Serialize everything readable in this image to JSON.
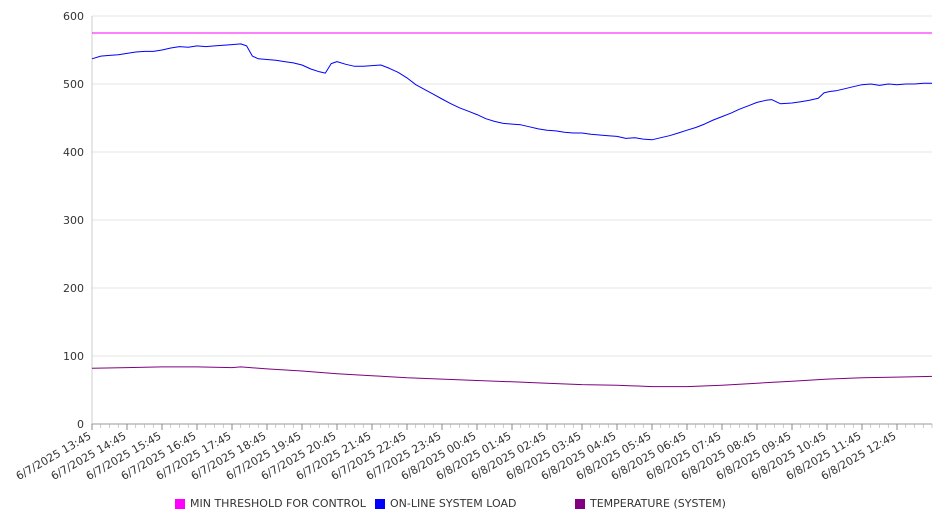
{
  "chart_data": {
    "type": "line",
    "title": "",
    "xlabel": "",
    "ylabel": "",
    "ylim": [
      0,
      600
    ],
    "yticks": [
      0,
      100,
      200,
      300,
      400,
      500,
      600
    ],
    "grid": true,
    "legend_placement": "bottom",
    "x_tick_labels": [
      "6/7/2025 13:45",
      "6/7/2025 14:45",
      "6/7/2025 15:45",
      "6/7/2025 16:45",
      "6/7/2025 17:45",
      "6/7/2025 18:45",
      "6/7/2025 19:45",
      "6/7/2025 20:45",
      "6/7/2025 21:45",
      "6/7/2025 22:45",
      "6/7/2025 23:45",
      "6/8/2025 00:45",
      "6/8/2025 01:45",
      "6/8/2025 02:45",
      "6/8/2025 03:45",
      "6/8/2025 04:45",
      "6/8/2025 05:45",
      "6/8/2025 06:45",
      "6/8/2025 07:45",
      "6/8/2025 08:45",
      "6/8/2025 09:45",
      "6/8/2025 10:45",
      "6/8/2025 11:45",
      "6/8/2025 12:45"
    ],
    "series": [
      {
        "name": "MIN THRESHOLD FOR CONTROL",
        "color": "#ff00ff",
        "points": [
          [
            "6/7/2025 13:45",
            575
          ],
          [
            "6/8/2025 13:45",
            575
          ]
        ]
      },
      {
        "name": "ON-LINE SYSTEM LOAD",
        "color": "#0000ff",
        "points": [
          [
            "6/7/2025 13:45",
            537
          ],
          [
            "6/7/2025 14:00",
            541
          ],
          [
            "6/7/2025 14:15",
            542
          ],
          [
            "6/7/2025 14:30",
            543
          ],
          [
            "6/7/2025 14:45",
            545
          ],
          [
            "6/7/2025 15:00",
            547
          ],
          [
            "6/7/2025 15:15",
            548
          ],
          [
            "6/7/2025 15:30",
            548
          ],
          [
            "6/7/2025 15:45",
            550
          ],
          [
            "6/7/2025 16:00",
            553
          ],
          [
            "6/7/2025 16:15",
            555
          ],
          [
            "6/7/2025 16:30",
            554
          ],
          [
            "6/7/2025 16:45",
            556
          ],
          [
            "6/7/2025 17:00",
            555
          ],
          [
            "6/7/2025 17:15",
            556
          ],
          [
            "6/7/2025 17:30",
            557
          ],
          [
            "6/7/2025 17:45",
            558
          ],
          [
            "6/7/2025 18:00",
            559
          ],
          [
            "6/7/2025 18:10",
            556
          ],
          [
            "6/7/2025 18:20",
            541
          ],
          [
            "6/7/2025 18:30",
            537
          ],
          [
            "6/7/2025 18:45",
            536
          ],
          [
            "6/7/2025 19:00",
            535
          ],
          [
            "6/7/2025 19:15",
            533
          ],
          [
            "6/7/2025 19:30",
            531
          ],
          [
            "6/7/2025 19:45",
            528
          ],
          [
            "6/7/2025 20:00",
            522
          ],
          [
            "6/7/2025 20:15",
            518
          ],
          [
            "6/7/2025 20:25",
            516
          ],
          [
            "6/7/2025 20:35",
            530
          ],
          [
            "6/7/2025 20:45",
            533
          ],
          [
            "6/7/2025 21:00",
            529
          ],
          [
            "6/7/2025 21:15",
            526
          ],
          [
            "6/7/2025 21:30",
            526
          ],
          [
            "6/7/2025 21:45",
            527
          ],
          [
            "6/7/2025 22:00",
            528
          ],
          [
            "6/7/2025 22:15",
            523
          ],
          [
            "6/7/2025 22:30",
            517
          ],
          [
            "6/7/2025 22:45",
            509
          ],
          [
            "6/7/2025 23:00",
            499
          ],
          [
            "6/7/2025 23:15",
            492
          ],
          [
            "6/7/2025 23:30",
            485
          ],
          [
            "6/7/2025 23:45",
            478
          ],
          [
            "6/8/2025 00:00",
            471
          ],
          [
            "6/8/2025 00:15",
            465
          ],
          [
            "6/8/2025 00:30",
            460
          ],
          [
            "6/8/2025 00:45",
            455
          ],
          [
            "6/8/2025 01:00",
            449
          ],
          [
            "6/8/2025 01:15",
            445
          ],
          [
            "6/8/2025 01:30",
            442
          ],
          [
            "6/8/2025 01:45",
            441
          ],
          [
            "6/8/2025 02:00",
            440
          ],
          [
            "6/8/2025 02:15",
            437
          ],
          [
            "6/8/2025 02:30",
            434
          ],
          [
            "6/8/2025 02:45",
            432
          ],
          [
            "6/8/2025 03:00",
            431
          ],
          [
            "6/8/2025 03:15",
            429
          ],
          [
            "6/8/2025 03:30",
            428
          ],
          [
            "6/8/2025 03:45",
            428
          ],
          [
            "6/8/2025 04:00",
            426
          ],
          [
            "6/8/2025 04:15",
            425
          ],
          [
            "6/8/2025 04:30",
            424
          ],
          [
            "6/8/2025 04:45",
            423
          ],
          [
            "6/8/2025 05:00",
            420
          ],
          [
            "6/8/2025 05:15",
            421
          ],
          [
            "6/8/2025 05:30",
            419
          ],
          [
            "6/8/2025 05:45",
            418
          ],
          [
            "6/8/2025 06:00",
            421
          ],
          [
            "6/8/2025 06:15",
            424
          ],
          [
            "6/8/2025 06:30",
            428
          ],
          [
            "6/8/2025 06:45",
            432
          ],
          [
            "6/8/2025 07:00",
            436
          ],
          [
            "6/8/2025 07:15",
            441
          ],
          [
            "6/8/2025 07:30",
            447
          ],
          [
            "6/8/2025 07:45",
            452
          ],
          [
            "6/8/2025 08:00",
            457
          ],
          [
            "6/8/2025 08:15",
            463
          ],
          [
            "6/8/2025 08:30",
            468
          ],
          [
            "6/8/2025 08:45",
            473
          ],
          [
            "6/8/2025 09:00",
            476
          ],
          [
            "6/8/2025 09:10",
            477
          ],
          [
            "6/8/2025 09:25",
            471
          ],
          [
            "6/8/2025 09:45",
            472
          ],
          [
            "6/8/2025 10:00",
            474
          ],
          [
            "6/8/2025 10:15",
            476
          ],
          [
            "6/8/2025 10:30",
            479
          ],
          [
            "6/8/2025 10:40",
            487
          ],
          [
            "6/8/2025 10:50",
            489
          ],
          [
            "6/8/2025 11:00",
            490
          ],
          [
            "6/8/2025 11:15",
            493
          ],
          [
            "6/8/2025 11:30",
            496
          ],
          [
            "6/8/2025 11:45",
            499
          ],
          [
            "6/8/2025 12:00",
            500
          ],
          [
            "6/8/2025 12:15",
            498
          ],
          [
            "6/8/2025 12:30",
            500
          ],
          [
            "6/8/2025 12:45",
            499
          ],
          [
            "6/8/2025 13:00",
            500
          ],
          [
            "6/8/2025 13:15",
            500
          ],
          [
            "6/8/2025 13:30",
            501
          ],
          [
            "6/8/2025 13:45",
            501
          ]
        ]
      },
      {
        "name": "TEMPERATURE (SYSTEM)",
        "color": "#800080",
        "points": [
          [
            "6/7/2025 13:45",
            82
          ],
          [
            "6/7/2025 14:45",
            83
          ],
          [
            "6/7/2025 15:45",
            84
          ],
          [
            "6/7/2025 16:45",
            84
          ],
          [
            "6/7/2025 17:45",
            83
          ],
          [
            "6/7/2025 18:00",
            84
          ],
          [
            "6/7/2025 18:45",
            81
          ],
          [
            "6/7/2025 19:45",
            78
          ],
          [
            "6/7/2025 20:45",
            74
          ],
          [
            "6/7/2025 21:45",
            71
          ],
          [
            "6/7/2025 22:45",
            68
          ],
          [
            "6/7/2025 23:45",
            66
          ],
          [
            "6/8/2025 00:45",
            64
          ],
          [
            "6/8/2025 01:45",
            62
          ],
          [
            "6/8/2025 02:45",
            60
          ],
          [
            "6/8/2025 03:45",
            58
          ],
          [
            "6/8/2025 04:45",
            57
          ],
          [
            "6/8/2025 05:45",
            55
          ],
          [
            "6/8/2025 06:45",
            55
          ],
          [
            "6/8/2025 07:45",
            57
          ],
          [
            "6/8/2025 08:45",
            60
          ],
          [
            "6/8/2025 09:45",
            63
          ],
          [
            "6/8/2025 10:45",
            66
          ],
          [
            "6/8/2025 11:45",
            68
          ],
          [
            "6/8/2025 12:45",
            69
          ],
          [
            "6/8/2025 13:45",
            70
          ]
        ]
      }
    ]
  }
}
